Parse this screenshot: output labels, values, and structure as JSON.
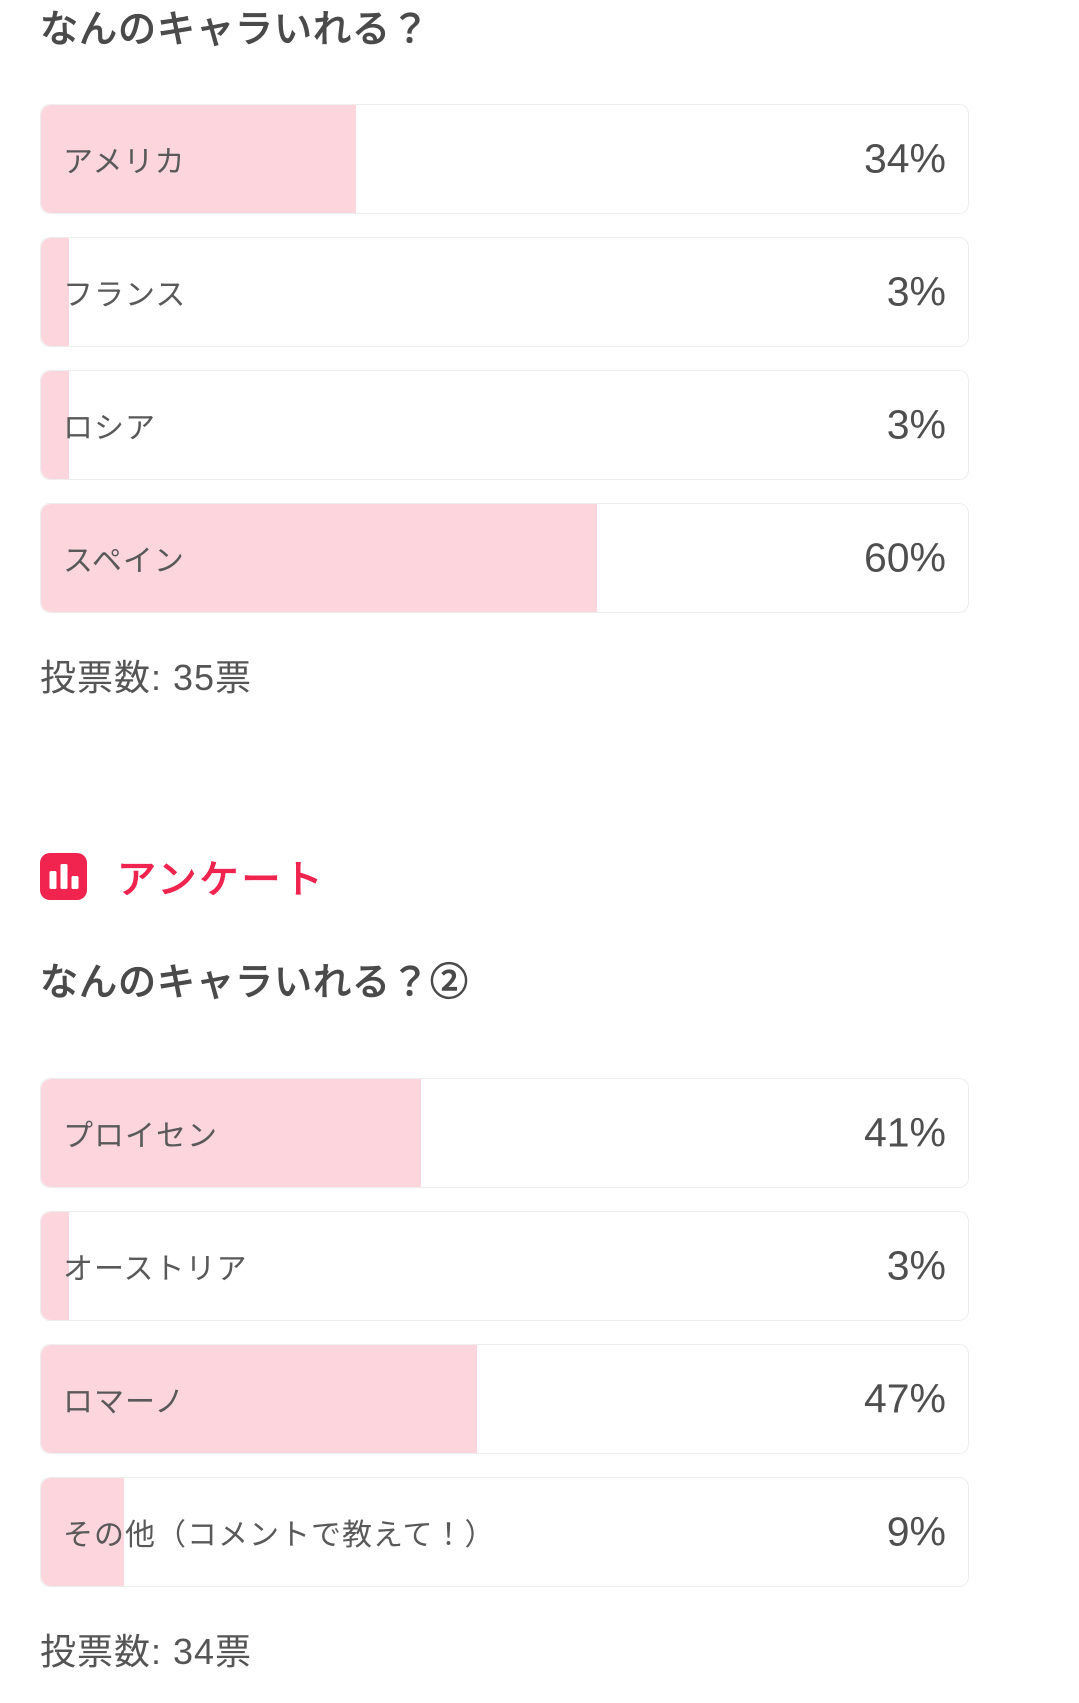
{
  "polls": [
    {
      "title": "なんのキャラいれる？",
      "votes_label": "投票数: 35票",
      "options": [
        {
          "label": "アメリカ",
          "percent": 34,
          "percent_label": "34%"
        },
        {
          "label": "フランス",
          "percent": 3,
          "percent_label": "3%"
        },
        {
          "label": "ロシア",
          "percent": 3,
          "percent_label": "3%"
        },
        {
          "label": "スペイン",
          "percent": 60,
          "percent_label": "60%"
        }
      ]
    },
    {
      "title": "なんのキャラいれる？②",
      "votes_label": "投票数: 34票",
      "options": [
        {
          "label": "プロイセン",
          "percent": 41,
          "percent_label": "41%"
        },
        {
          "label": "オーストリア",
          "percent": 3,
          "percent_label": "3%"
        },
        {
          "label": "ロマーノ",
          "percent": 47,
          "percent_label": "47%"
        },
        {
          "label": "その他（コメントで教えて！）",
          "percent": 9,
          "percent_label": "9%"
        }
      ]
    }
  ],
  "survey_badge": {
    "label": "アンケート",
    "icon": "bar-chart-icon"
  },
  "colors": {
    "accent_red": "#f0244f",
    "bar_fill_pink": "#fcd6dc",
    "bar_border": "#ededed",
    "title_text": "#4a4a4a",
    "option_text": "#595959",
    "percent_text": "#4f4f4f"
  },
  "chart_data": [
    {
      "type": "bar",
      "orientation": "horizontal",
      "title": "なんのキャラいれる？",
      "categories": [
        "アメリカ",
        "フランス",
        "ロシア",
        "スペイン"
      ],
      "values": [
        34,
        3,
        3,
        60
      ],
      "unit": "%",
      "xlim": [
        0,
        100
      ],
      "grid": false,
      "legend": "none",
      "annotations": [
        "34%",
        "3%",
        "3%",
        "60%"
      ],
      "footer": "投票数: 35票",
      "total_votes": 35
    },
    {
      "type": "bar",
      "orientation": "horizontal",
      "title": "なんのキャラいれる？②",
      "categories": [
        "プロイセン",
        "オーストリア",
        "ロマーノ",
        "その他（コメントで教えて！）"
      ],
      "values": [
        41,
        3,
        47,
        9
      ],
      "unit": "%",
      "xlim": [
        0,
        100
      ],
      "grid": false,
      "legend": "none",
      "annotations": [
        "41%",
        "3%",
        "47%",
        "9%"
      ],
      "footer": "投票数: 34票",
      "total_votes": 34
    }
  ]
}
